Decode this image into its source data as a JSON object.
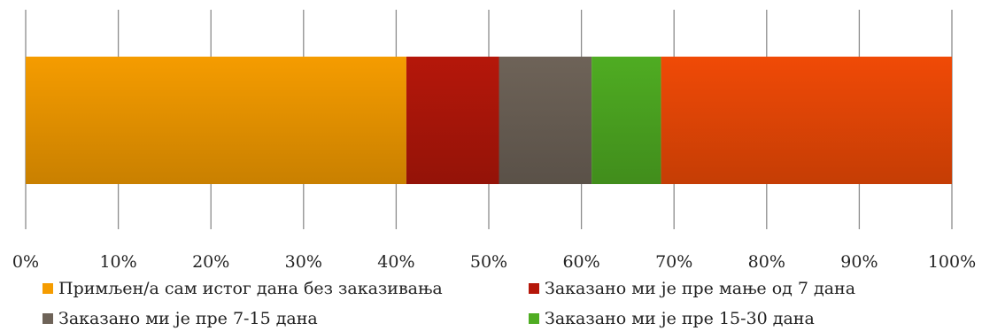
{
  "chart_data": {
    "type": "bar",
    "orientation": "horizontal",
    "stacked": "percent",
    "title": "",
    "xlabel": "",
    "ylabel": "",
    "xlim": [
      0,
      100
    ],
    "x_ticks": [
      "0%",
      "10%",
      "20%",
      "30%",
      "40%",
      "50%",
      "60%",
      "70%",
      "80%",
      "90%",
      "100%"
    ],
    "grid": "vertical",
    "legend_position": "bottom",
    "series": [
      {
        "name": "Примљен/а сам истог дана без заказивања",
        "value": 41.1,
        "color": "#f59c00"
      },
      {
        "name": "Заказано ми је пре мање од 7 дана",
        "value": 10.0,
        "color": "#b5170a"
      },
      {
        "name": "Заказано ми је пре 7-15 дана",
        "value": 10.0,
        "color": "#6e6358"
      },
      {
        "name": "Заказано ми је пре 15-30 дана",
        "value": 7.5,
        "color": "#4fac22"
      },
      {
        "name": "",
        "value": 31.4,
        "color": "#f04a06"
      }
    ]
  }
}
